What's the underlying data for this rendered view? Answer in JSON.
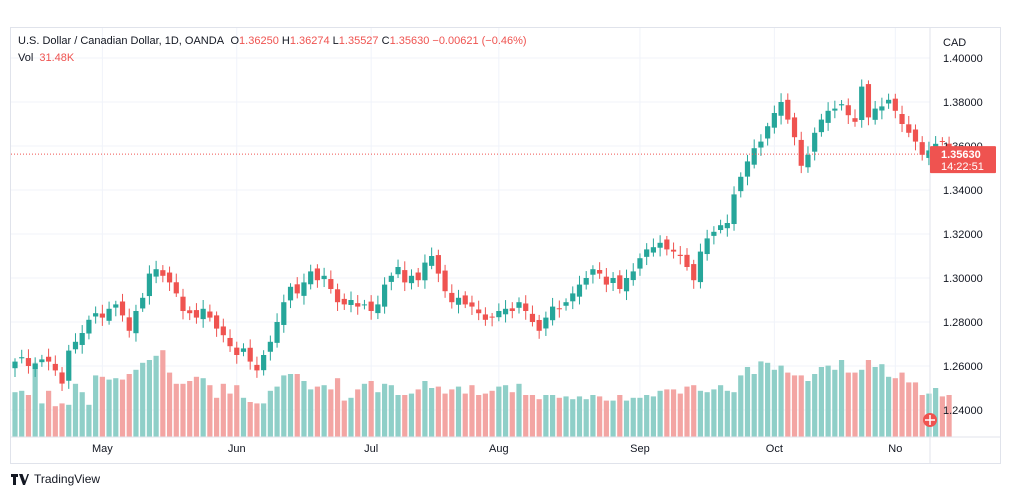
{
  "legend": {
    "symbol": "U.S. Dollar / Canadian Dollar, 1D, OANDA",
    "o_label": "O",
    "o_value": "1.36250",
    "h_label": "H",
    "h_value": "1.36274",
    "l_label": "L",
    "l_value": "1.35527",
    "c_label": "C",
    "c_value": "1.35630",
    "change": "−0.00621 (−0.46%)",
    "vol_label": "Vol",
    "vol_value": "31.48K"
  },
  "price_axis": {
    "currency": "CAD"
  },
  "last_price": {
    "value": "1.35630",
    "countdown": "14:22:51"
  },
  "footer": {
    "brand": "TradingView"
  },
  "colors": {
    "up": "#26a69a",
    "down": "#ef5350",
    "vol_up": "#8fcfc8",
    "vol_down": "#f3a5a3",
    "grid": "#f0f3fa"
  },
  "chart_data": {
    "type": "candlestick",
    "title": "U.S. Dollar / Canadian Dollar, 1D, OANDA",
    "ylabel": "CAD",
    "ylim": [
      1.23,
      1.405
    ],
    "y_ticks": [
      "1.40000",
      "1.38000",
      "1.36000",
      "1.34000",
      "1.32000",
      "1.30000",
      "1.28000",
      "1.26000",
      "1.24000"
    ],
    "x_ticks": [
      "May",
      "Jun",
      "Jul",
      "Aug",
      "Sep",
      "Oct",
      "No"
    ],
    "x_tick_index": [
      13,
      33,
      53,
      72,
      93,
      113,
      131
    ],
    "grid": true,
    "close": [
      1.262,
      1.264,
      1.26,
      1.261,
      1.263,
      1.262,
      1.258,
      1.252,
      1.267,
      1.271,
      1.275,
      1.281,
      1.284,
      1.282,
      1.286,
      1.288,
      1.283,
      1.276,
      1.285,
      1.291,
      1.302,
      1.304,
      1.301,
      1.298,
      1.293,
      1.285,
      1.284,
      1.282,
      1.286,
      1.282,
      1.277,
      1.274,
      1.269,
      1.265,
      1.268,
      1.262,
      1.258,
      1.265,
      1.271,
      1.28,
      1.289,
      1.296,
      1.293,
      1.298,
      1.303,
      1.299,
      1.301,
      1.295,
      1.289,
      1.288,
      1.29,
      1.287,
      1.288,
      1.285,
      1.288,
      1.297,
      1.301,
      1.305,
      1.298,
      1.301,
      1.299,
      1.307,
      1.31,
      1.302,
      1.294,
      1.289,
      1.291,
      1.288,
      1.287,
      1.284,
      1.281,
      1.282,
      1.285,
      1.286,
      1.285,
      1.289,
      1.285,
      1.28,
      1.276,
      1.282,
      1.287,
      1.286,
      1.289,
      1.293,
      1.297,
      1.3,
      1.304,
      1.302,
      1.297,
      1.3,
      1.295,
      1.3,
      1.303,
      1.309,
      1.313,
      1.314,
      1.316,
      1.313,
      1.312,
      1.31,
      1.305,
      1.299,
      1.312,
      1.318,
      1.321,
      1.324,
      1.325,
      1.338,
      1.346,
      1.353,
      1.359,
      1.362,
      1.369,
      1.375,
      1.38,
      1.372,
      1.364,
      1.351,
      1.356,
      1.366,
      1.372,
      1.376,
      1.377,
      1.379,
      1.374,
      1.371,
      1.387,
      1.373,
      1.377,
      1.378,
      1.381,
      1.376,
      1.37,
      1.366,
      1.362,
      1.356,
      1.358,
      1.361,
      1.362,
      1.356
    ],
    "volume": [
      0.32,
      0.33,
      0.3,
      0.53,
      0.24,
      0.33,
      0.22,
      0.24,
      0.23,
      0.38,
      0.32,
      0.23,
      0.44,
      0.43,
      0.41,
      0.42,
      0.41,
      0.45,
      0.48,
      0.53,
      0.55,
      0.58,
      0.62,
      0.46,
      0.38,
      0.38,
      0.4,
      0.43,
      0.42,
      0.37,
      0.28,
      0.38,
      0.31,
      0.37,
      0.28,
      0.25,
      0.24,
      0.24,
      0.33,
      0.36,
      0.44,
      0.45,
      0.45,
      0.4,
      0.34,
      0.36,
      0.37,
      0.34,
      0.42,
      0.26,
      0.28,
      0.34,
      0.38,
      0.4,
      0.32,
      0.38,
      0.37,
      0.3,
      0.3,
      0.31,
      0.34,
      0.4,
      0.35,
      0.36,
      0.31,
      0.34,
      0.36,
      0.31,
      0.37,
      0.3,
      0.31,
      0.33,
      0.36,
      0.37,
      0.32,
      0.38,
      0.3,
      0.3,
      0.27,
      0.3,
      0.3,
      0.28,
      0.29,
      0.27,
      0.29,
      0.27,
      0.3,
      0.29,
      0.26,
      0.26,
      0.3,
      0.26,
      0.28,
      0.28,
      0.3,
      0.29,
      0.33,
      0.34,
      0.34,
      0.31,
      0.36,
      0.37,
      0.33,
      0.32,
      0.34,
      0.37,
      0.33,
      0.32,
      0.44,
      0.5,
      0.45,
      0.54,
      0.53,
      0.48,
      0.51,
      0.46,
      0.44,
      0.44,
      0.4,
      0.45,
      0.5,
      0.51,
      0.48,
      0.55,
      0.46,
      0.46,
      0.48,
      0.55,
      0.5,
      0.52,
      0.43,
      0.42,
      0.46,
      0.39,
      0.39,
      0.3,
      0.31,
      0.35,
      0.29,
      0.3
    ]
  }
}
